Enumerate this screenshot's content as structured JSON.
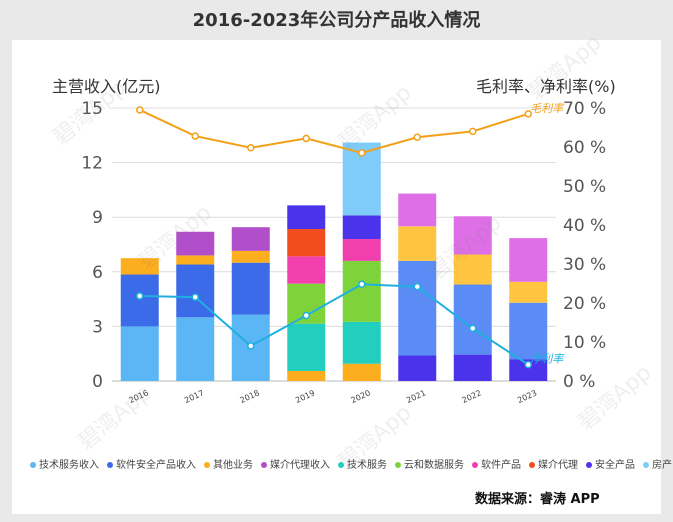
{
  "title": "2016-2023年公司分产品收入情况",
  "source_text": "数据来源：睿涛 APP",
  "watermark_text": "碧湾App",
  "chart_data": {
    "type": "bar",
    "stacked": true,
    "categories": [
      "2016",
      "2017",
      "2018",
      "2019",
      "2020",
      "2021",
      "2022",
      "2023"
    ],
    "ylabel_left": "主营收入(亿元)",
    "ylabel_right": "毛利率、净利率(%)",
    "ylim_left": [
      0,
      15
    ],
    "yticks_left": [
      0,
      3,
      6,
      9,
      12,
      15
    ],
    "ylim_right": [
      0,
      70
    ],
    "yticks_right": [
      0,
      10,
      20,
      30,
      40,
      50,
      60,
      70
    ],
    "yticks_right_labels": [
      "0 %",
      "10 %",
      "20 %",
      "30 %",
      "40 %",
      "50 %",
      "60 %",
      "70 %"
    ],
    "legend_position": "bottom",
    "series": [
      {
        "name": "技术服务收入",
        "color": "#5bb6f5",
        "values": [
          3.0,
          3.5,
          3.65,
          0,
          0,
          0,
          0,
          0
        ]
      },
      {
        "name": "软件安全产品收入",
        "color": "#3b6be8",
        "values": [
          2.85,
          2.9,
          2.85,
          0,
          0,
          0,
          0,
          0
        ]
      },
      {
        "name": "其他业务",
        "color": "#fcae1e",
        "values": [
          0.9,
          0.5,
          0.65,
          0.55,
          0.95,
          0,
          0,
          0
        ]
      },
      {
        "name": "媒介代理收入",
        "color": "#b04fc9",
        "values": [
          0,
          1.3,
          1.3,
          0,
          0,
          0,
          0,
          0
        ]
      },
      {
        "name": "技术服务",
        "color": "#22cfbf",
        "values": [
          0,
          0,
          0,
          2.6,
          2.3,
          0,
          0,
          0
        ]
      },
      {
        "name": "云和数据服务",
        "color": "#7fd33a",
        "values": [
          0,
          0,
          0,
          2.2,
          3.35,
          0,
          0,
          0
        ]
      },
      {
        "name": "软件产品",
        "color": "#f23fae",
        "values": [
          0,
          0,
          0,
          1.5,
          1.2,
          0,
          0,
          0
        ]
      },
      {
        "name": "媒介代理",
        "color": "#f24d1c",
        "values": [
          0,
          0,
          0,
          1.5,
          0,
          0,
          0,
          0
        ]
      },
      {
        "name": "安全产品",
        "color": "#4a33ea",
        "values": [
          0,
          0,
          0,
          1.3,
          1.3,
          1.4,
          1.45,
          1.2
        ]
      },
      {
        "name": "房产",
        "color": "#7fcbfa",
        "values": [
          0,
          0,
          0,
          0,
          4.0,
          0,
          0,
          0
        ]
      },
      {
        "name": "",
        "color": "#5b8cf5",
        "values": [
          0,
          0,
          0,
          0,
          0,
          5.2,
          3.85,
          3.1
        ]
      },
      {
        "name": "",
        "color": "#ffc440",
        "values": [
          0,
          0,
          0,
          0,
          0,
          1.9,
          1.65,
          1.15
        ]
      },
      {
        "name": "",
        "color": "#df6fe6",
        "values": [
          0,
          0,
          0,
          0,
          0,
          1.8,
          2.1,
          2.4
        ]
      }
    ],
    "lines": [
      {
        "name": "毛利率",
        "color": "#f3a018",
        "values": [
          69.5,
          62.8,
          59.8,
          62.2,
          58.5,
          62.5,
          64.0,
          68.5
        ]
      },
      {
        "name": "净利率",
        "color": "#1db0e0",
        "values": [
          21.8,
          21.5,
          9.0,
          16.8,
          24.8,
          24.2,
          13.5,
          4.2
        ]
      }
    ]
  }
}
